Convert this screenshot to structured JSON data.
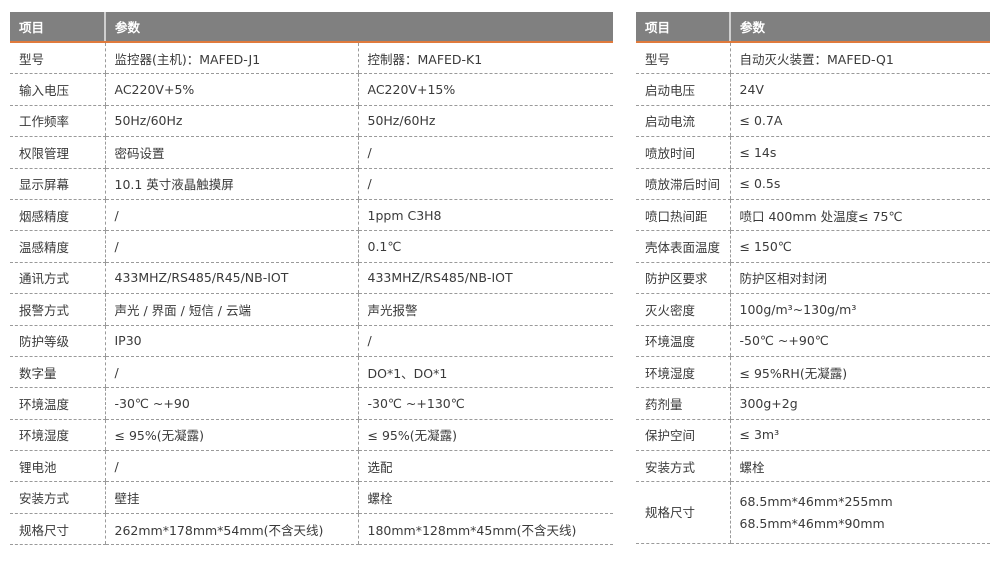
{
  "left_table": {
    "headers": [
      "项目",
      "参数"
    ],
    "rows": [
      {
        "item": "型号",
        "a": "监控器(主机)：MAFED-J1",
        "b": "控制器：MAFED-K1"
      },
      {
        "item": "输入电压",
        "a": "AC220V+5%",
        "b": "AC220V+15%"
      },
      {
        "item": "工作频率",
        "a": "50Hz/60Hz",
        "b": "50Hz/60Hz"
      },
      {
        "item": "权限管理",
        "a": "密码设置",
        "b": "/"
      },
      {
        "item": "显示屏幕",
        "a": "10.1 英寸液晶触摸屏",
        "b": "/"
      },
      {
        "item": "烟感精度",
        "a": "/",
        "b": "1ppm C3H8"
      },
      {
        "item": "温感精度",
        "a": "/",
        "b": "0.1℃"
      },
      {
        "item": "通讯方式",
        "a": "433MHZ/RS485/R45/NB-IOT",
        "b": "433MHZ/RS485/NB-IOT"
      },
      {
        "item": "报警方式",
        "a": "声光 / 界面 / 短信 / 云端",
        "b": "声光报警"
      },
      {
        "item": "防护等级",
        "a": "IP30",
        "b": "/"
      },
      {
        "item": "数字量",
        "a": "/",
        "b": "DO*1、DO*1"
      },
      {
        "item": "环境温度",
        "a": "-30℃ ~+90",
        "b": "-30℃ ~+130℃"
      },
      {
        "item": "环境湿度",
        "a": "≤ 95%(无凝露)",
        "b": "≤ 95%(无凝露)"
      },
      {
        "item": "锂电池",
        "a": "/",
        "b": "选配"
      },
      {
        "item": "安装方式",
        "a": "壁挂",
        "b": "螺栓"
      },
      {
        "item": "规格尺寸",
        "a": "262mm*178mm*54mm(不含天线)",
        "b": "180mm*128mm*45mm(不含天线)"
      }
    ]
  },
  "right_table": {
    "headers": [
      "项目",
      "参数"
    ],
    "rows": [
      {
        "item": "型号",
        "a": "自动灭火装置：MAFED-Q1"
      },
      {
        "item": "启动电压",
        "a": "24V"
      },
      {
        "item": "启动电流",
        "a": "≤ 0.7A"
      },
      {
        "item": "喷放时间",
        "a": "≤ 14s"
      },
      {
        "item": "喷放滞后时间",
        "a": "≤ 0.5s"
      },
      {
        "item": "喷口热间距",
        "a": "喷口 400mm 处温度≤ 75℃"
      },
      {
        "item": "壳体表面温度",
        "a": "≤ 150℃"
      },
      {
        "item": "防护区要求",
        "a": "防护区相对封闭"
      },
      {
        "item": "灭火密度",
        "a": "100g/m³~130g/m³"
      },
      {
        "item": "环境温度",
        "a": "-50℃ ~+90℃"
      },
      {
        "item": "环境湿度",
        "a": "≤ 95%RH(无凝露)"
      },
      {
        "item": "药剂量",
        "a": "300g+2g"
      },
      {
        "item": "保护空间",
        "a": "≤ 3m³"
      },
      {
        "item": "安装方式",
        "a": "螺栓"
      }
    ],
    "last_row": {
      "item": "规格尺寸",
      "lines": [
        "68.5mm*46mm*255mm",
        "68.5mm*46mm*90mm"
      ]
    }
  },
  "colors": {
    "header_bg": "#808080",
    "header_accent": "#e07a3c"
  }
}
